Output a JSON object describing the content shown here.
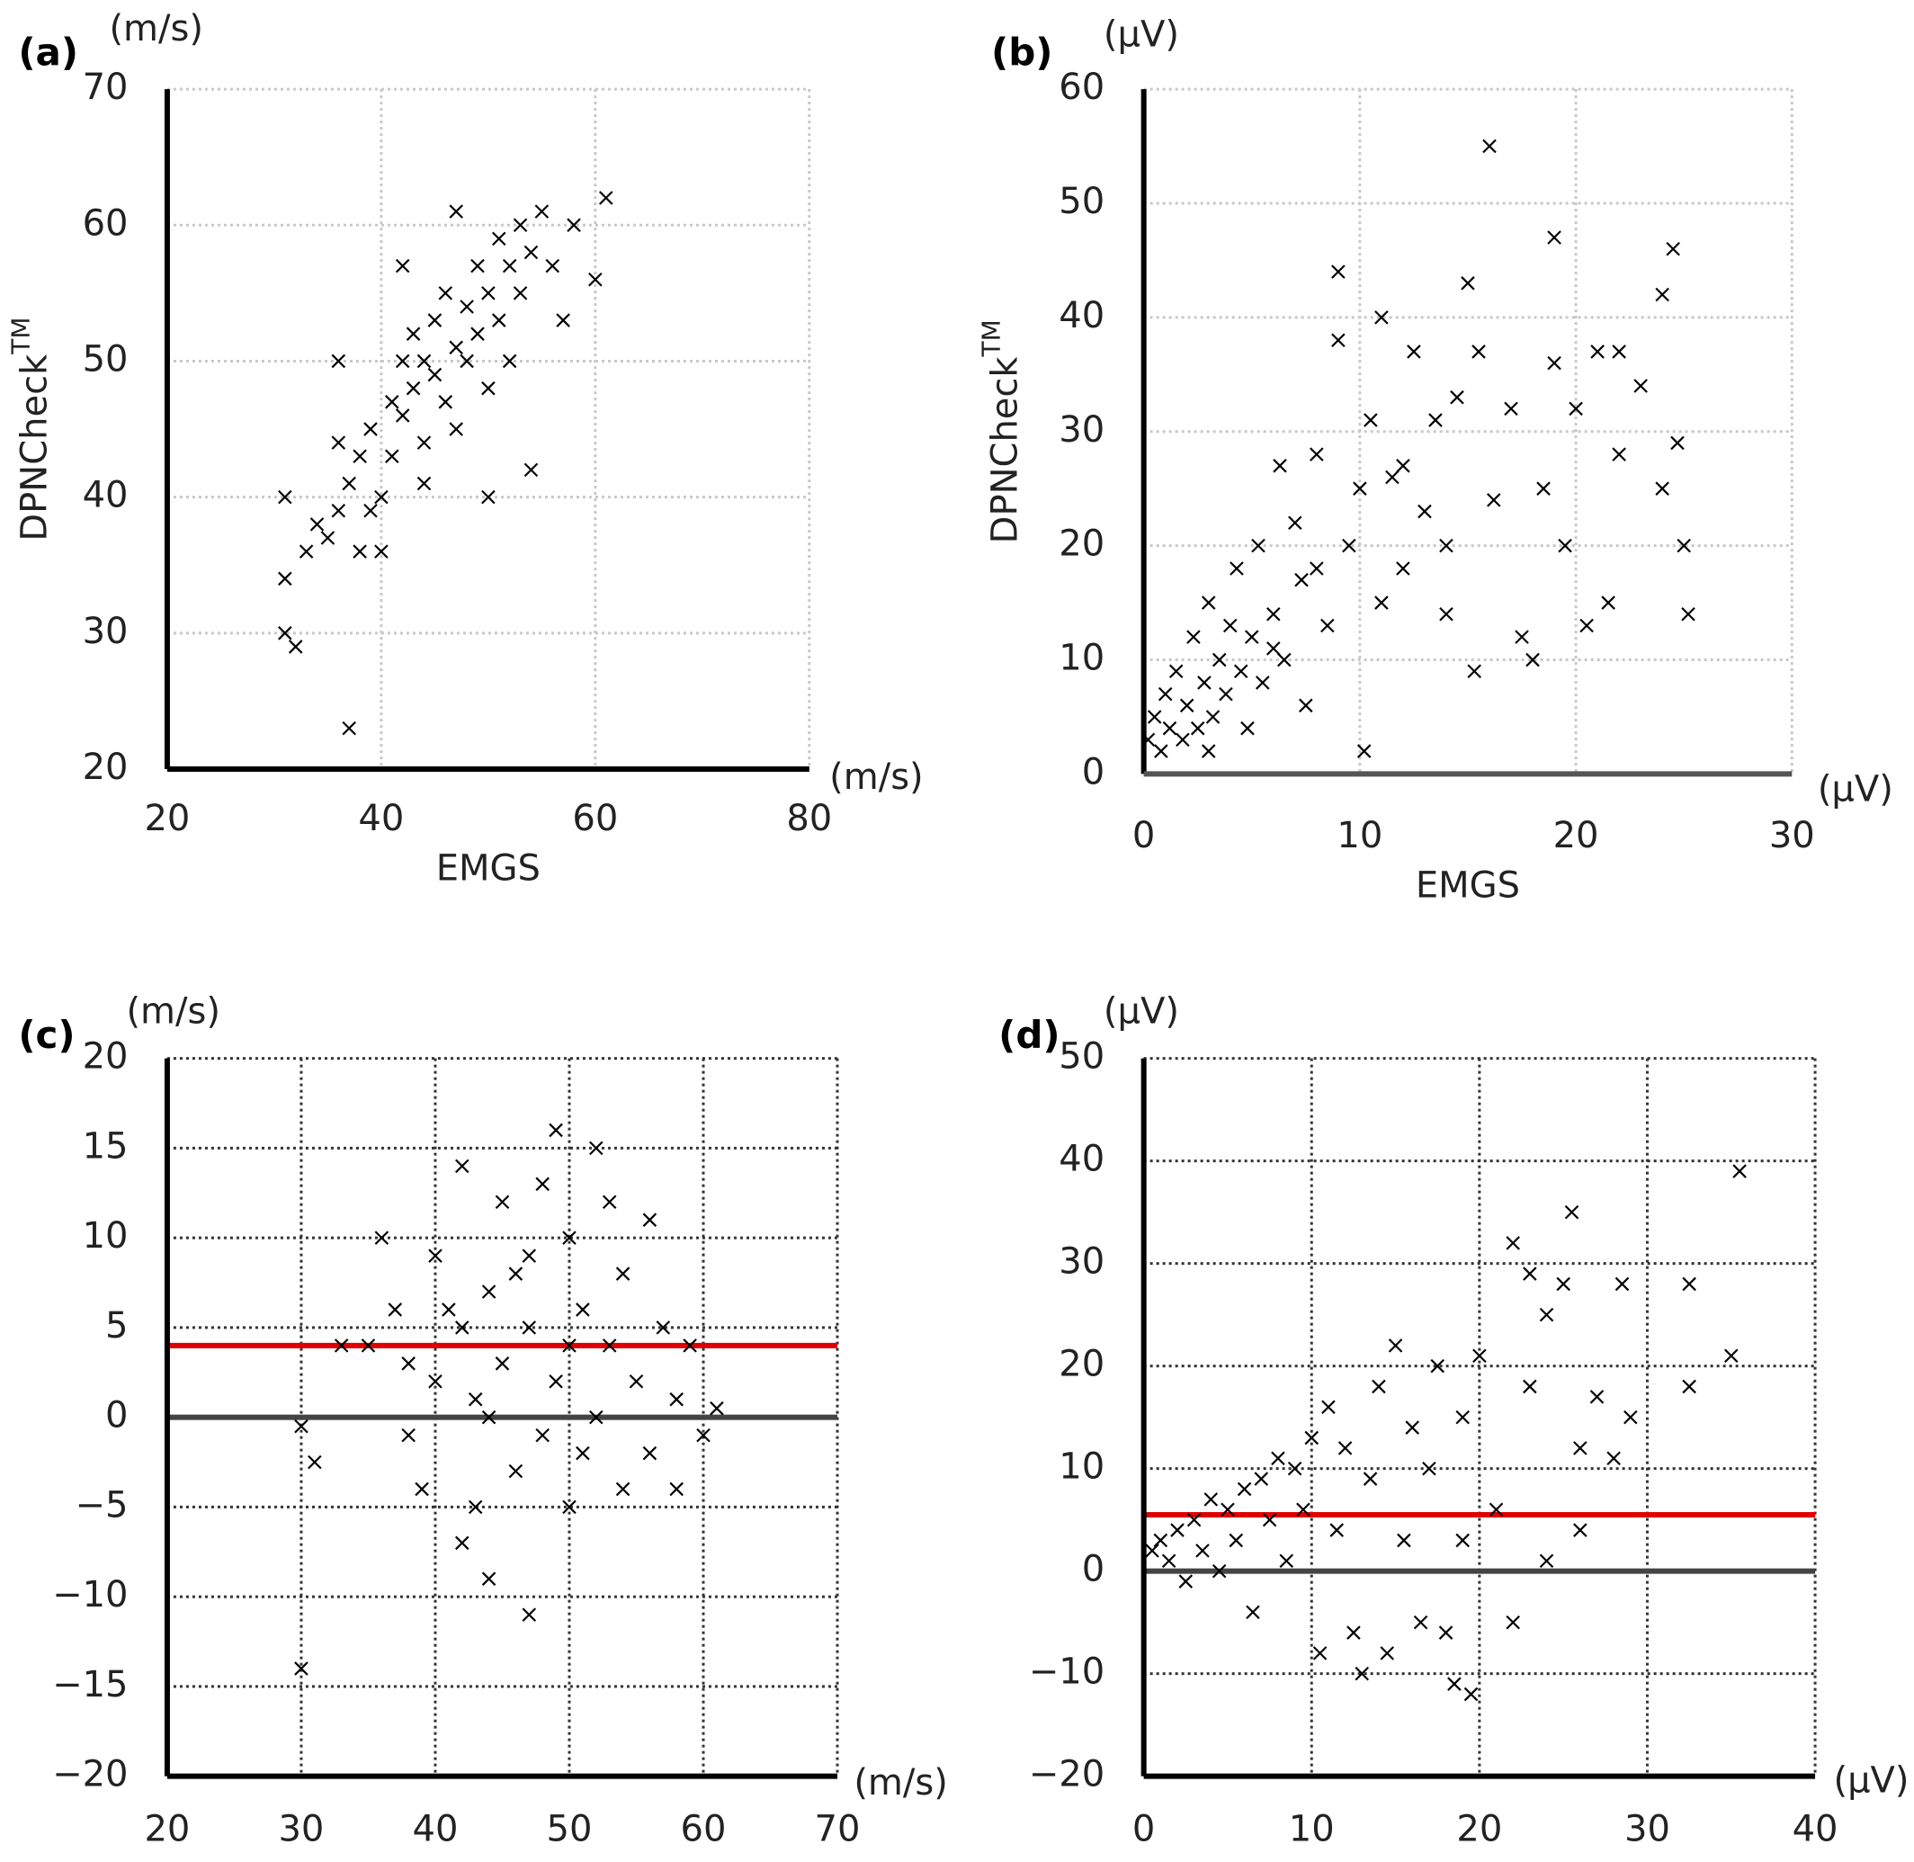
{
  "chart_data": [
    {
      "type": "scatter",
      "panel_label": "(a)",
      "y_unit": "(m/s)",
      "x_unit": "(m/s)",
      "xlabel": "EMGS",
      "ylabel": "DPNCheck",
      "ylabel_superscript": "TM",
      "xlim": [
        20,
        80
      ],
      "xticks": [
        20,
        40,
        60,
        80
      ],
      "ylim": [
        20,
        70
      ],
      "yticks": [
        20,
        30,
        40,
        50,
        60,
        70
      ],
      "grid": true,
      "grid_color": "#c8c8c8",
      "x_axis_color": "#000",
      "color": "#000",
      "x": [
        31,
        31,
        31,
        32,
        37,
        33,
        34,
        35,
        36,
        36,
        37,
        38,
        38,
        39,
        40,
        40,
        41,
        41,
        42,
        42,
        43,
        43,
        44,
        44,
        45,
        45,
        46,
        46,
        47,
        47,
        48,
        48,
        49,
        49,
        50,
        50,
        51,
        51,
        52,
        52,
        53,
        53,
        54,
        54,
        55,
        56,
        57,
        58,
        60,
        61,
        36,
        42,
        50,
        44,
        47,
        39
      ],
      "values": [
        40,
        34,
        30,
        29,
        23,
        36,
        38,
        37,
        39,
        44,
        41,
        43,
        36,
        45,
        40,
        36,
        47,
        43,
        50,
        46,
        48,
        52,
        44,
        50,
        53,
        49,
        47,
        55,
        51,
        45,
        54,
        50,
        57,
        52,
        48,
        55,
        59,
        53,
        57,
        50,
        60,
        55,
        58,
        42,
        61,
        57,
        53,
        60,
        56,
        62,
        50,
        57,
        40,
        41,
        61,
        39
      ]
    },
    {
      "type": "scatter",
      "panel_label": "(b)",
      "y_unit": "(μV)",
      "x_unit": "(μV)",
      "xlabel": "EMGS",
      "ylabel": "DPNCheck",
      "ylabel_superscript": "TM",
      "xlim": [
        0,
        30
      ],
      "xticks": [
        0,
        10,
        20,
        30
      ],
      "ylim": [
        0,
        60
      ],
      "yticks": [
        0,
        10,
        20,
        30,
        40,
        50,
        60
      ],
      "grid": true,
      "grid_color": "#c8c8c8",
      "x_axis_color": "#555",
      "color": "#000",
      "x": [
        0.2,
        0.5,
        0.8,
        1,
        1.2,
        1.5,
        1.8,
        2,
        2.3,
        2.5,
        2.8,
        3,
        3.2,
        3.5,
        3.8,
        4,
        4.3,
        4.5,
        4.8,
        5,
        5.3,
        5.5,
        6,
        6.3,
        6.5,
        7,
        7.3,
        7.5,
        8,
        8.5,
        9,
        9,
        9.5,
        10,
        10.2,
        10.5,
        11,
        11,
        11.5,
        12,
        12.5,
        13,
        13.5,
        14,
        14.5,
        15,
        15.3,
        15.5,
        16,
        16.2,
        17,
        17.5,
        18,
        18.5,
        19,
        19,
        19.5,
        20,
        20.5,
        21,
        21.5,
        22,
        22,
        23,
        24,
        24,
        24.5,
        24.7,
        25,
        25.2,
        14,
        12,
        8,
        6,
        3
      ],
      "values": [
        3,
        5,
        2,
        7,
        4,
        9,
        3,
        6,
        12,
        4,
        8,
        15,
        5,
        10,
        7,
        13,
        18,
        9,
        4,
        12,
        20,
        8,
        14,
        27,
        10,
        22,
        17,
        6,
        28,
        13,
        44,
        38,
        20,
        25,
        2,
        31,
        40,
        15,
        26,
        18,
        37,
        23,
        31,
        14,
        33,
        43,
        9,
        37,
        55,
        24,
        32,
        12,
        10,
        25,
        47,
        36,
        20,
        32,
        13,
        37,
        15,
        37,
        28,
        34,
        42,
        25,
        46,
        29,
        20,
        14,
        20,
        27,
        18,
        11,
        2
      ]
    },
    {
      "type": "scatter",
      "panel_label": "(c)",
      "y_unit": "(m/s)",
      "x_unit": "(m/s)",
      "xlim": [
        20,
        70
      ],
      "xticks": [
        20,
        30,
        40,
        50,
        60,
        70
      ],
      "ylim": [
        -20,
        20
      ],
      "yticks": [
        {
          "value": -20,
          "label": "−20"
        },
        {
          "value": -15,
          "label": "−15"
        },
        {
          "value": -10,
          "label": "−10"
        },
        {
          "value": -5,
          "label": "−5"
        },
        0,
        5,
        10,
        15,
        20
      ],
      "grid": true,
      "grid_color": "#333",
      "x_axis_color": "#000",
      "color": "#000",
      "hlines": [
        {
          "value": 0,
          "color": "#444"
        },
        {
          "value": 4,
          "color": "#e00000"
        }
      ],
      "x": [
        30,
        30,
        31,
        33,
        35,
        36,
        37,
        38,
        38,
        39,
        40,
        40,
        41,
        42,
        42,
        43,
        43,
        44,
        44,
        45,
        45,
        46,
        46,
        47,
        47,
        48,
        48,
        49,
        49,
        50,
        50,
        51,
        51,
        52,
        52,
        53,
        53,
        54,
        54,
        55,
        56,
        56,
        57,
        58,
        58,
        59,
        60,
        61,
        47,
        50,
        44,
        42
      ],
      "values": [
        -14,
        -0.5,
        -2.5,
        4,
        4,
        10,
        6,
        -1,
        3,
        -4,
        9,
        2,
        6,
        -7,
        14,
        -5,
        1,
        7,
        -9,
        3,
        12,
        -3,
        8,
        -11,
        5,
        13,
        -1,
        16,
        2,
        -5,
        10,
        6,
        -2,
        15,
        0,
        12,
        4,
        -4,
        8,
        2,
        11,
        -2,
        5,
        -4,
        1,
        4,
        -1,
        0.5,
        9,
        4,
        0,
        5
      ]
    },
    {
      "type": "scatter",
      "panel_label": "(d)",
      "y_unit": "(μV)",
      "x_unit": "(μV)",
      "xlim": [
        0,
        40
      ],
      "xticks": [
        0,
        10,
        20,
        30,
        40
      ],
      "ylim": [
        -20,
        50
      ],
      "yticks": [
        {
          "value": -20,
          "label": "−20"
        },
        {
          "value": -10,
          "label": "−10"
        },
        0,
        10,
        20,
        30,
        40,
        50
      ],
      "grid": true,
      "grid_color": "#333",
      "x_axis_color": "#000",
      "color": "#000",
      "hlines": [
        {
          "value": 0,
          "color": "#444"
        },
        {
          "value": 5.5,
          "color": "#e00000"
        }
      ],
      "x": [
        0.5,
        1,
        1.5,
        2,
        2.5,
        3,
        3.5,
        4,
        4.5,
        5,
        5.5,
        6,
        6.5,
        7,
        7.5,
        8,
        8.5,
        9,
        9.5,
        10,
        10.5,
        11,
        11.5,
        12,
        12.5,
        13,
        13.5,
        14,
        14.5,
        15,
        15.5,
        16,
        16.5,
        17,
        17.5,
        18,
        18.5,
        19,
        19.5,
        20,
        21,
        22,
        22,
        23,
        23,
        24,
        24,
        25,
        25.5,
        26,
        26,
        27,
        28,
        28.5,
        29,
        32.5,
        32.5,
        35,
        35.5,
        19
      ],
      "values": [
        2,
        3,
        1,
        4,
        -1,
        5,
        2,
        7,
        0,
        6,
        3,
        8,
        -4,
        9,
        5,
        11,
        1,
        10,
        6,
        13,
        -8,
        16,
        4,
        12,
        -6,
        -10,
        9,
        18,
        -8,
        22,
        3,
        14,
        -5,
        10,
        20,
        -6,
        -11,
        15,
        -12,
        21,
        6,
        -5,
        32,
        18,
        29,
        25,
        1,
        28,
        35,
        12,
        4,
        17,
        11,
        28,
        15,
        28,
        18,
        21,
        39,
        3
      ]
    }
  ]
}
